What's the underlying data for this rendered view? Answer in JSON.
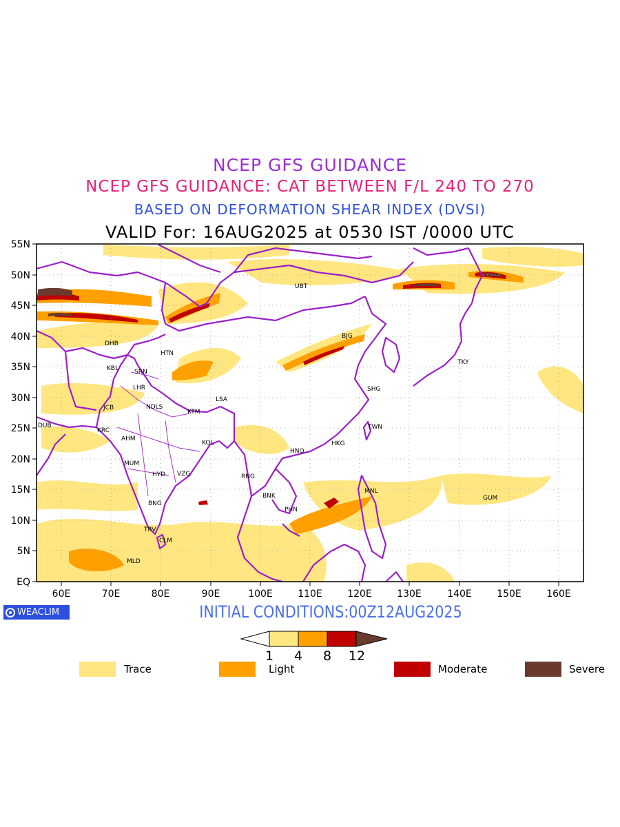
{
  "titles": {
    "line1": "NCEP GFS GUIDANCE",
    "line2": "NCEP GFS GUIDANCE: CAT BETWEEN F/L 240 TO 270",
    "line3": "BASED ON DEFORMATION SHEAR INDEX (DVSI)",
    "line4": "VALID For: 16AUG2025 at 0530 IST /0000 UTC"
  },
  "map": {
    "lon_range": [
      55,
      165
    ],
    "lat_range": [
      0,
      55
    ],
    "lat_labels": [
      "55N",
      "50N",
      "45N",
      "40N",
      "35N",
      "30N",
      "25N",
      "20N",
      "15N",
      "10N",
      "5N",
      "EQ"
    ],
    "lon_labels": [
      "60E",
      "70E",
      "80E",
      "90E",
      "100E",
      "110E",
      "120E",
      "130E",
      "140E",
      "150E",
      "160E"
    ],
    "boundary_color": "#9b1fc9",
    "cities": [
      "UBT",
      "BJG",
      "DHB",
      "HTN",
      "KBL",
      "SRN",
      "LHR",
      "TKY",
      "SHG",
      "LSA",
      "JCB",
      "NDLS",
      "KTM",
      "DUB",
      "KRC",
      "TWN",
      "AHM",
      "KOL",
      "HKG",
      "HNO",
      "MUM",
      "HYD",
      "VZG",
      "RNG",
      "BNK",
      "MNL",
      "GUM",
      "BNG",
      "PHN",
      "TRV",
      "CLM",
      "MLD"
    ]
  },
  "badge": {
    "text": "WEACLIM"
  },
  "initial_conditions": "INITIAL CONDITIONS:00Z12AUG2025",
  "colorbar": {
    "ticks": [
      "1",
      "4",
      "8",
      "12"
    ],
    "colors": [
      "#ffe680",
      "#ffa000",
      "#c00000",
      "#6a3a2e"
    ]
  },
  "legend": [
    {
      "label": "Trace",
      "color": "#ffe680"
    },
    {
      "label": "Light",
      "color": "#ffa000"
    },
    {
      "label": "Moderate",
      "color": "#c00000"
    },
    {
      "label": "Severe",
      "color": "#6a3a2e"
    }
  ]
}
